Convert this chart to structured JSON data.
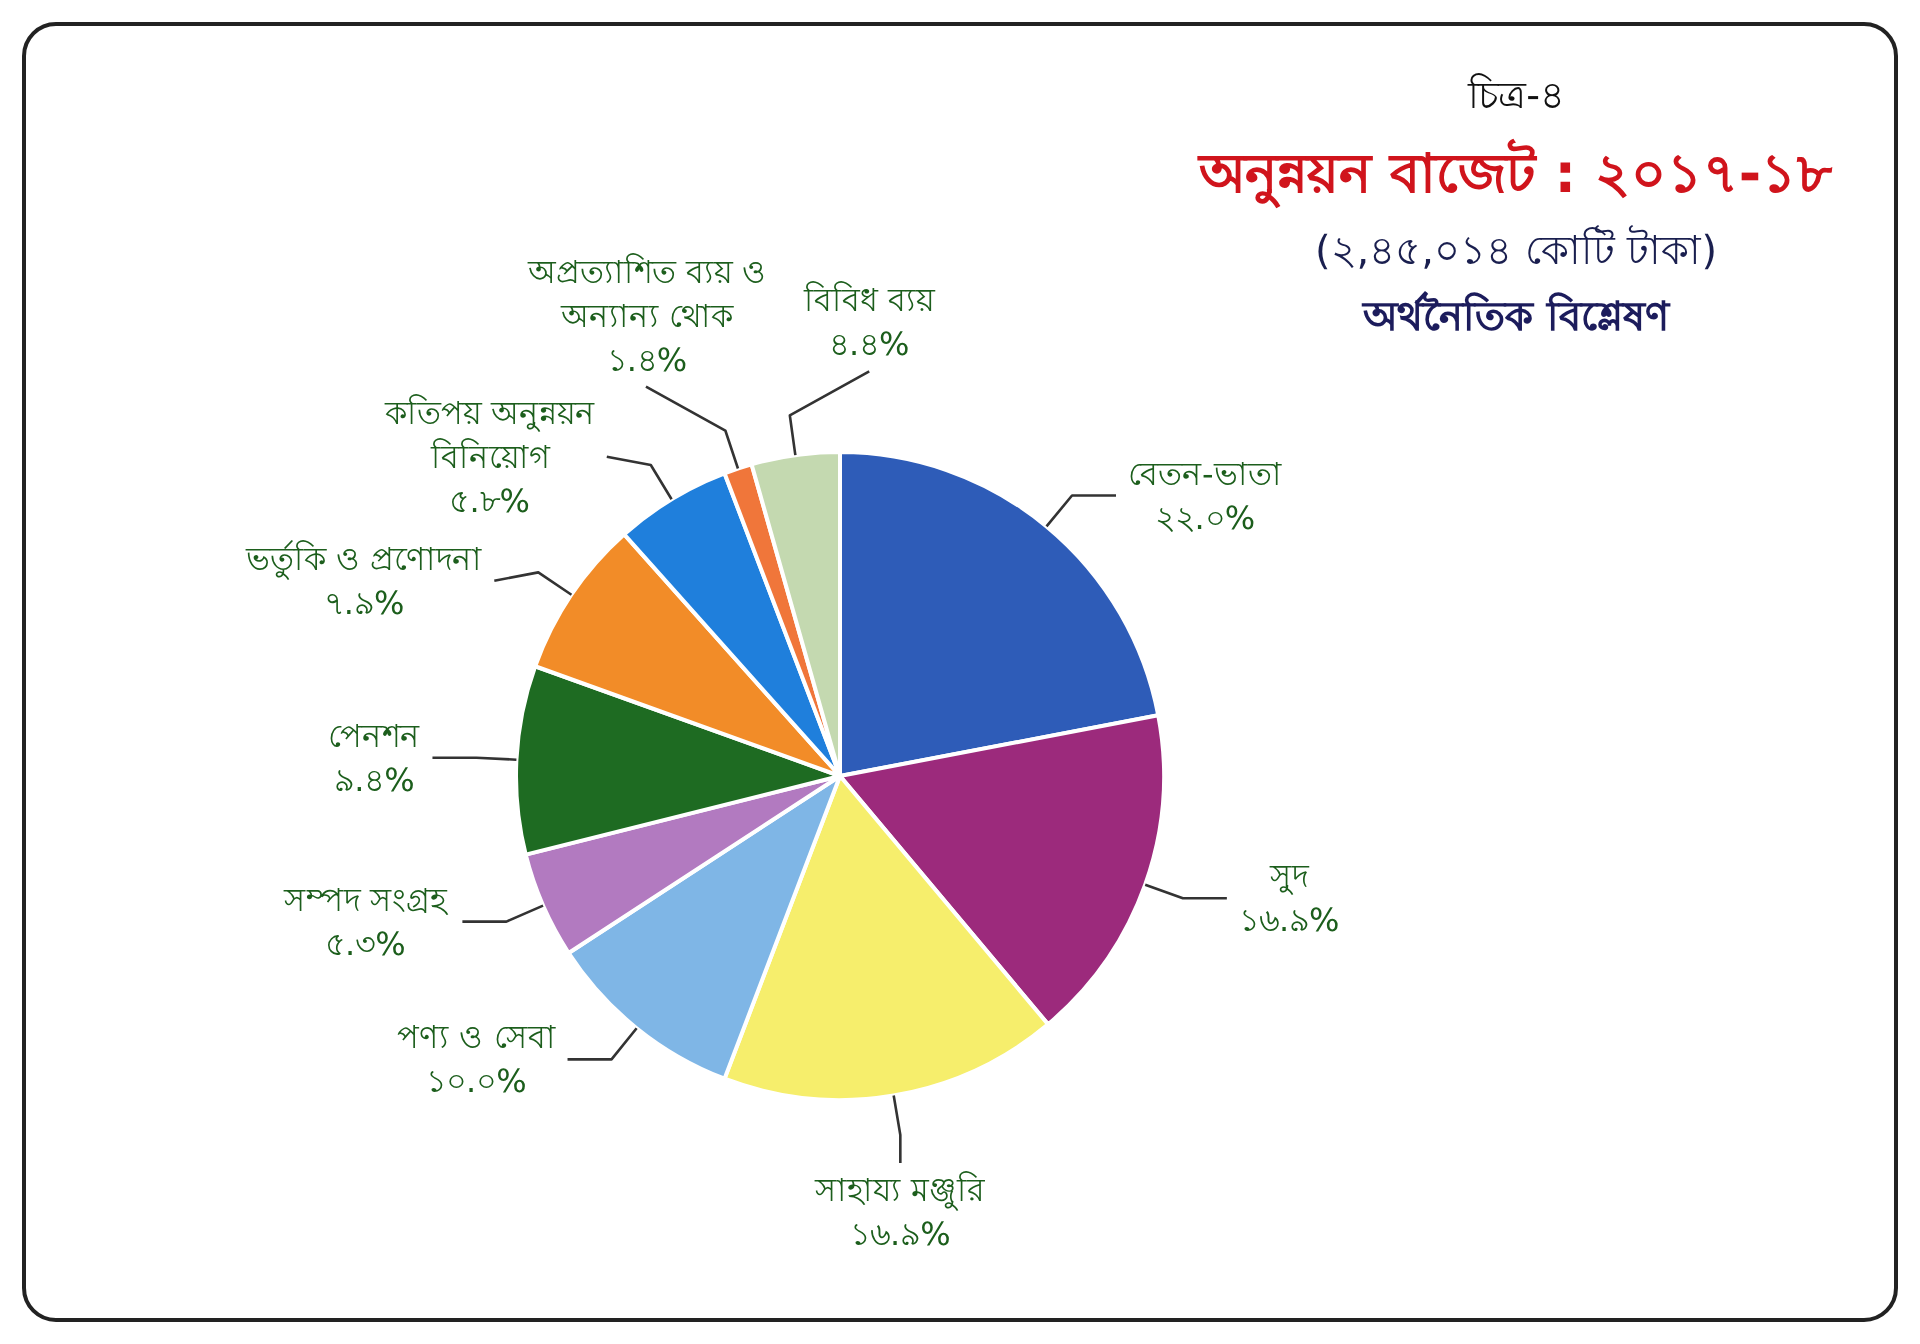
{
  "chart_data": {
    "type": "pie",
    "title": "অনুন্নয়ন বাজেট : ২০১৭-১৮",
    "subtitle": "(২,৪৫,০১৪ কোটি টাকা)",
    "annotations": [
      "চিত্র-৪",
      "অর্থনৈতিক বিশ্লেষণ"
    ],
    "categories": [
      "বেতন-ভাতা",
      "সুদ",
      "সাহায্য মঞ্জুরি",
      "পণ্য ও সেবা",
      "সম্পদ সংগ্রহ",
      "পেনশন",
      "ভর্তুকি ও প্রণোদনা",
      "কতিপয় অনুন্নয়ন বিনিয়োগ",
      "অপ্রত্যাশিত ব্যয় ও অন্যান্য থোক",
      "বিবিধ ব্যয়"
    ],
    "values": [
      22.0,
      16.9,
      16.9,
      10.0,
      5.3,
      9.4,
      7.9,
      5.8,
      1.4,
      4.4
    ],
    "value_labels": [
      "২২.০%",
      "১৬.৯%",
      "১৬.৯%",
      "১০.০%",
      "৫.৩%",
      "৯.৪%",
      "৭.৯%",
      "৫.৮%",
      "১.৪%",
      "৪.৪%"
    ],
    "colors": [
      "#2e5cb8",
      "#9c2a7c",
      "#f6ee6c",
      "#7fb6e6",
      "#b27ac0",
      "#1e6b22",
      "#f28c28",
      "#1f7fdc",
      "#f0763a",
      "#c4d9b0"
    ]
  }
}
